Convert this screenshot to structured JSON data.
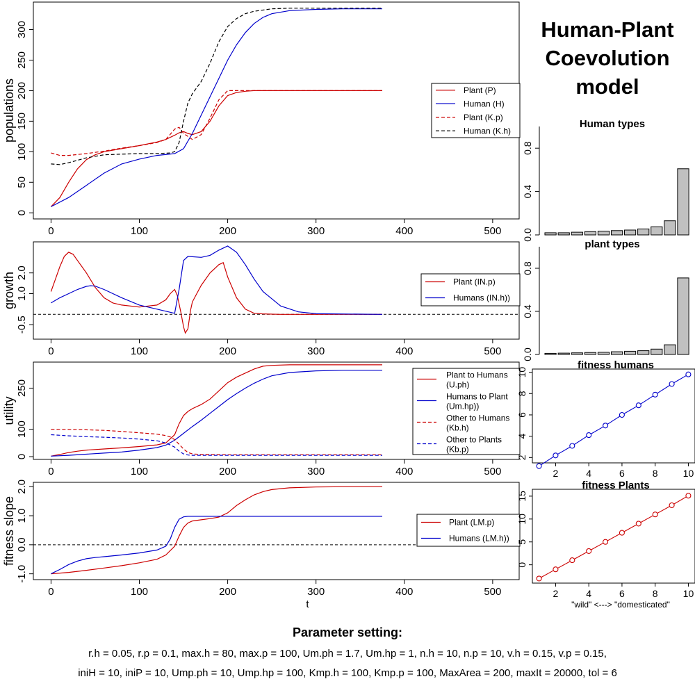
{
  "title": {
    "line1": "Human-Plant",
    "line2": "Coevolution",
    "line3": "model"
  },
  "parameters": {
    "heading": "Parameter setting:",
    "line1": "r.h = 0.05, r.p = 0.1, max.h = 80, max.p = 100, Um.ph = 1.7, Um.hp = 1, n.h = 10, n.p = 10, v.h = 0.15, v.p = 0.15,",
    "line2": "iniH = 10, iniP = 10, Ump.ph = 10, Ump.hp = 100, Kmp.h = 100, Kmp.p = 100, MaxArea = 200, maxIt = 20000, tol = 6"
  },
  "colors": {
    "red": "#cc0000",
    "blue": "#0000cc",
    "black": "#000000",
    "bar": "#c0c0c0"
  },
  "chart_data": [
    {
      "id": "populations",
      "type": "line",
      "xlabel": "",
      "ylabel": "populations",
      "xlim": [
        -20,
        530
      ],
      "ylim": [
        -10,
        345
      ],
      "xticks": [
        0,
        100,
        200,
        300,
        400,
        500
      ],
      "yticks": [
        0,
        50,
        100,
        150,
        200,
        250,
        300
      ],
      "hline": null,
      "legend": {
        "position": "right",
        "entries": [
          {
            "label": "Plant (P)",
            "color": "#cc0000",
            "dash": false
          },
          {
            "label": "Human (H)",
            "color": "#0000cc",
            "dash": false
          },
          {
            "label": "Plant (K.p)",
            "color": "#cc0000",
            "dash": true
          },
          {
            "label": "Human (K.h)",
            "color": "#000000",
            "dash": true
          }
        ]
      },
      "series": [
        {
          "name": "Plant (P)",
          "color": "#cc0000",
          "dash": false,
          "x": [
            0,
            10,
            20,
            30,
            40,
            50,
            60,
            80,
            100,
            120,
            130,
            140,
            145,
            150,
            155,
            160,
            170,
            180,
            190,
            200,
            210,
            220,
            230,
            250,
            300,
            375
          ],
          "y": [
            10,
            25,
            50,
            72,
            87,
            95,
            100,
            105,
            110,
            116,
            120,
            127,
            131,
            133,
            130,
            128,
            133,
            150,
            175,
            192,
            197,
            199,
            200,
            200,
            200,
            200
          ]
        },
        {
          "name": "Human (H)",
          "color": "#0000cc",
          "dash": false,
          "x": [
            0,
            20,
            40,
            60,
            80,
            100,
            120,
            140,
            150,
            160,
            170,
            180,
            190,
            200,
            210,
            220,
            230,
            240,
            250,
            270,
            300,
            330,
            375
          ],
          "y": [
            10,
            25,
            45,
            65,
            80,
            88,
            94,
            97,
            105,
            130,
            160,
            190,
            220,
            250,
            275,
            295,
            310,
            320,
            326,
            331,
            333,
            334,
            334
          ]
        },
        {
          "name": "Plant (K.p)",
          "color": "#cc0000",
          "dash": true,
          "x": [
            0,
            10,
            20,
            40,
            60,
            80,
            100,
            120,
            130,
            140,
            145,
            150,
            160,
            170,
            180,
            190,
            200,
            210,
            230,
            300,
            375
          ],
          "y": [
            98,
            94,
            94,
            97,
            101,
            106,
            110,
            115,
            120,
            137,
            140,
            130,
            120,
            128,
            155,
            185,
            200,
            200,
            200,
            200,
            200
          ]
        },
        {
          "name": "Human (K.h)",
          "color": "#000000",
          "dash": true,
          "x": [
            0,
            10,
            20,
            40,
            60,
            80,
            100,
            120,
            135,
            140,
            145,
            150,
            155,
            160,
            170,
            180,
            190,
            200,
            210,
            220,
            230,
            250,
            270,
            300,
            375
          ],
          "y": [
            80,
            79,
            82,
            90,
            95,
            96,
            97,
            97,
            98,
            100,
            115,
            150,
            180,
            195,
            215,
            245,
            280,
            305,
            318,
            326,
            330,
            334,
            335,
            335,
            335
          ]
        }
      ]
    },
    {
      "id": "growth",
      "type": "line",
      "xlabel": "",
      "ylabel": "growth",
      "xlim": [
        -20,
        530
      ],
      "ylim": [
        -1.2,
        3.5
      ],
      "xticks": [
        0,
        100,
        200,
        300,
        400,
        500
      ],
      "yticks": [
        -0.5,
        1.0,
        2.0
      ],
      "hline": 0,
      "legend": {
        "position": "right",
        "entries": [
          {
            "label": "Plant (IN.p)",
            "color": "#cc0000",
            "dash": false
          },
          {
            "label": "Humans (IN.h))",
            "color": "#0000cc",
            "dash": false
          }
        ]
      },
      "series": [
        {
          "name": "Plant (IN.p)",
          "color": "#cc0000",
          "dash": false,
          "x": [
            0,
            5,
            10,
            15,
            20,
            25,
            30,
            40,
            50,
            60,
            70,
            80,
            100,
            120,
            130,
            135,
            140,
            143,
            147,
            150,
            152,
            155,
            158,
            160,
            165,
            170,
            180,
            190,
            195,
            200,
            210,
            220,
            230,
            240,
            260,
            300,
            375
          ],
          "y": [
            1.1,
            1.7,
            2.3,
            2.8,
            3.0,
            2.9,
            2.6,
            2.0,
            1.3,
            0.8,
            0.55,
            0.45,
            0.35,
            0.45,
            0.7,
            1.0,
            1.2,
            0.9,
            0.1,
            -0.6,
            -0.9,
            -0.7,
            0.2,
            0.6,
            1.0,
            1.4,
            2.0,
            2.4,
            2.5,
            1.8,
            0.8,
            0.25,
            0.05,
            0.02,
            0,
            0,
            0
          ]
        },
        {
          "name": "Humans (IN.h))",
          "color": "#0000cc",
          "dash": false,
          "x": [
            0,
            10,
            20,
            30,
            40,
            45,
            50,
            60,
            80,
            100,
            120,
            130,
            140,
            145,
            150,
            155,
            160,
            170,
            180,
            190,
            200,
            210,
            220,
            230,
            240,
            260,
            280,
            300,
            375
          ],
          "y": [
            0.55,
            0.8,
            1.0,
            1.2,
            1.35,
            1.38,
            1.36,
            1.2,
            0.8,
            0.45,
            0.25,
            0.15,
            0.05,
            1.2,
            2.6,
            2.8,
            2.78,
            2.75,
            2.85,
            3.1,
            3.3,
            3.0,
            2.4,
            1.7,
            1.1,
            0.4,
            0.12,
            0.03,
            0
          ]
        }
      ]
    },
    {
      "id": "utility",
      "type": "line",
      "xlabel": "",
      "ylabel": "utility",
      "xlim": [
        -20,
        530
      ],
      "ylim": [
        -10,
        345
      ],
      "xticks": [
        0,
        100,
        200,
        300,
        400,
        500
      ],
      "yticks": [
        0,
        100,
        250
      ],
      "hline": null,
      "legend": {
        "position": "right",
        "entries": [
          {
            "label": "Plant to Humans (U.ph)",
            "color": "#cc0000",
            "dash": false
          },
          {
            "label": "Humans to Plant (Um.hp))",
            "color": "#0000cc",
            "dash": false
          },
          {
            "label": "Other to Humans (Kb.h)",
            "color": "#cc0000",
            "dash": true
          },
          {
            "label": "Other to Plants (Kb.p)",
            "color": "#0000cc",
            "dash": true
          }
        ]
      },
      "series": [
        {
          "name": "Plant to Humans (U.ph)",
          "color": "#cc0000",
          "dash": false,
          "x": [
            0,
            10,
            20,
            30,
            40,
            60,
            80,
            100,
            120,
            130,
            140,
            145,
            150,
            155,
            160,
            170,
            180,
            190,
            200,
            210,
            220,
            230,
            240,
            250,
            270,
            300,
            375
          ],
          "y": [
            2,
            8,
            15,
            20,
            24,
            28,
            32,
            37,
            43,
            50,
            80,
            120,
            150,
            165,
            175,
            190,
            210,
            240,
            270,
            290,
            305,
            320,
            330,
            333,
            335,
            335,
            335
          ]
        },
        {
          "name": "Humans to Plant (Um.hp))",
          "color": "#0000cc",
          "dash": false,
          "x": [
            0,
            20,
            40,
            60,
            80,
            100,
            120,
            130,
            140,
            150,
            160,
            170,
            180,
            190,
            200,
            210,
            220,
            230,
            240,
            250,
            270,
            300,
            330,
            375
          ],
          "y": [
            2,
            5,
            9,
            13,
            17,
            24,
            33,
            42,
            60,
            85,
            110,
            133,
            158,
            183,
            208,
            230,
            250,
            268,
            283,
            295,
            307,
            313,
            315,
            315
          ]
        },
        {
          "name": "Other to Humans (Kb.h)",
          "color": "#cc0000",
          "dash": true,
          "x": [
            0,
            20,
            40,
            60,
            80,
            100,
            120,
            130,
            135,
            140,
            145,
            150,
            155,
            160,
            170,
            180,
            200,
            250,
            300,
            375
          ],
          "y": [
            100,
            99,
            98,
            96,
            92,
            87,
            82,
            77,
            72,
            62,
            45,
            28,
            15,
            10,
            8,
            8,
            7,
            7,
            7,
            7
          ]
        },
        {
          "name": "Other to Plants (Kb.p)",
          "color": "#0000cc",
          "dash": true,
          "x": [
            0,
            20,
            40,
            60,
            80,
            100,
            120,
            130,
            140,
            145,
            150,
            155,
            160,
            170,
            200,
            250,
            300,
            375
          ],
          "y": [
            80,
            76,
            73,
            71,
            68,
            64,
            58,
            50,
            35,
            20,
            10,
            6,
            5,
            5,
            5,
            5,
            5,
            5
          ]
        }
      ]
    },
    {
      "id": "fitness_slope",
      "type": "line",
      "xlabel": "t",
      "ylabel": "fitness slope",
      "xlim": [
        -20,
        530
      ],
      "ylim": [
        -1.2,
        2.15
      ],
      "xticks": [
        0,
        100,
        200,
        300,
        400,
        500
      ],
      "yticks": [
        -1.0,
        0.0,
        1.0,
        2.0
      ],
      "hline": 0,
      "legend": {
        "position": "right",
        "entries": [
          {
            "label": "Plant (LM.p)",
            "color": "#cc0000",
            "dash": false
          },
          {
            "label": "Humans (LM.h))",
            "color": "#0000cc",
            "dash": false
          }
        ]
      },
      "series": [
        {
          "name": "Plant (LM.p)",
          "color": "#cc0000",
          "dash": false,
          "x": [
            0,
            20,
            40,
            60,
            80,
            100,
            120,
            130,
            140,
            145,
            150,
            155,
            160,
            170,
            180,
            190,
            200,
            210,
            220,
            230,
            240,
            250,
            270,
            300,
            330,
            375
          ],
          "y": [
            -1.0,
            -0.95,
            -0.88,
            -0.8,
            -0.72,
            -0.62,
            -0.5,
            -0.35,
            -0.05,
            0.3,
            0.6,
            0.75,
            0.82,
            0.86,
            0.9,
            0.95,
            1.1,
            1.35,
            1.55,
            1.72,
            1.83,
            1.9,
            1.96,
            1.99,
            2.0,
            2.0
          ]
        },
        {
          "name": "Humans (LM.h))",
          "color": "#0000cc",
          "dash": false,
          "x": [
            0,
            10,
            20,
            30,
            40,
            50,
            60,
            80,
            100,
            120,
            130,
            135,
            140,
            145,
            150,
            155,
            160,
            200,
            250,
            300,
            375
          ],
          "y": [
            -1.0,
            -0.85,
            -0.68,
            -0.56,
            -0.48,
            -0.44,
            -0.41,
            -0.35,
            -0.28,
            -0.18,
            -0.05,
            0.2,
            0.6,
            0.88,
            0.96,
            0.98,
            0.98,
            0.98,
            0.98,
            0.98,
            0.98
          ]
        }
      ]
    },
    {
      "id": "human_types",
      "type": "bar",
      "title": "Human types",
      "xlabel": "",
      "ylim": [
        0,
        1
      ],
      "yticks": [
        0.0,
        0.4,
        0.8
      ],
      "color": "#c0c0c0",
      "values": [
        0.02,
        0.02,
        0.025,
        0.03,
        0.035,
        0.04,
        0.045,
        0.055,
        0.075,
        0.13,
        0.61
      ]
    },
    {
      "id": "plant_types",
      "type": "bar",
      "title": "plant types",
      "xlabel": "",
      "ylim": [
        0,
        1
      ],
      "yticks": [
        0.0,
        0.4,
        0.8
      ],
      "color": "#c0c0c0",
      "values": [
        0.01,
        0.012,
        0.015,
        0.018,
        0.02,
        0.025,
        0.03,
        0.035,
        0.05,
        0.09,
        0.71
      ]
    },
    {
      "id": "fitness_humans",
      "type": "scatter",
      "title": "fitness humans",
      "xlabel": "",
      "xlim": [
        0.6,
        10.4
      ],
      "ylim": [
        1.5,
        10.3
      ],
      "xticks": [
        2,
        4,
        6,
        8,
        10
      ],
      "yticks": [
        2,
        4,
        6,
        8,
        10
      ],
      "color": "#0000cc",
      "x": [
        1,
        2,
        3,
        4,
        5,
        6,
        7,
        8,
        9,
        10
      ],
      "y": [
        1.2,
        2.2,
        3.1,
        4.1,
        5.0,
        6.0,
        6.9,
        7.9,
        8.9,
        9.8
      ]
    },
    {
      "id": "fitness_plants",
      "type": "scatter",
      "title": "fitness Plants",
      "xlabel": "\"wild\" <---> \"domesticated\"",
      "xlim": [
        0.6,
        10.4
      ],
      "ylim": [
        -4,
        16.5
      ],
      "xticks": [
        2,
        4,
        6,
        8,
        10
      ],
      "yticks": [
        0,
        5,
        10,
        15
      ],
      "color": "#cc0000",
      "x": [
        1,
        2,
        3,
        4,
        5,
        6,
        7,
        8,
        9,
        10
      ],
      "y": [
        -3.0,
        -1.0,
        1.0,
        3.0,
        5.0,
        7.0,
        9.0,
        11.0,
        13.0,
        15.1
      ]
    }
  ]
}
